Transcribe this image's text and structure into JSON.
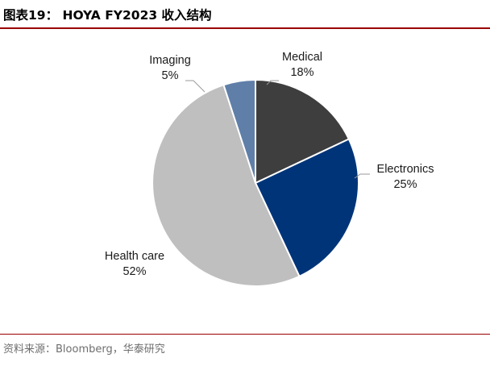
{
  "header": {
    "title": "图表19： HOYA FY2023 收入结构"
  },
  "footer": {
    "source": "资料来源：Bloomberg，华泰研究"
  },
  "colors": {
    "title_rule": "#9a0000",
    "leader_line": "#9a9a9a"
  },
  "chart_data": {
    "type": "pie",
    "title": "",
    "start_angle_deg": 90,
    "direction": "clockwise",
    "slices": [
      {
        "label": "Medical",
        "value_label": "18%",
        "value": 18,
        "color": "#3e3e3e"
      },
      {
        "label": "Electronics",
        "value_label": "25%",
        "value": 25,
        "color": "#003478"
      },
      {
        "label": "Health care",
        "value_label": "52%",
        "value": 52,
        "color": "#bfbfbf"
      },
      {
        "label": "Imaging",
        "value_label": "5%",
        "value": 5,
        "color": "#5f7fa8"
      }
    ]
  }
}
